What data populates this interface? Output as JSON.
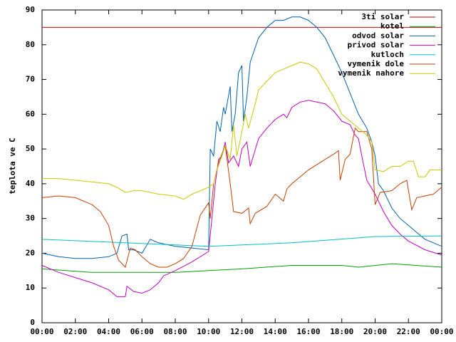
{
  "chart_data": {
    "type": "line",
    "y_label": "teplota ve C",
    "legend": "top-right",
    "grid": false,
    "xlim": [
      0,
      24
    ],
    "ylim": [
      0,
      90
    ],
    "xticks": [
      {
        "value": 0,
        "label": "00:00"
      },
      {
        "value": 2,
        "label": "02:00"
      },
      {
        "value": 4,
        "label": "04:00"
      },
      {
        "value": 6,
        "label": "06:00"
      },
      {
        "value": 8,
        "label": "08:00"
      },
      {
        "value": 10,
        "label": "10:00"
      },
      {
        "value": 12,
        "label": "12:00"
      },
      {
        "value": 14,
        "label": "14:00"
      },
      {
        "value": 16,
        "label": "16:00"
      },
      {
        "value": 18,
        "label": "18:00"
      },
      {
        "value": 20,
        "label": "20:00"
      },
      {
        "value": 22,
        "label": "22:00"
      },
      {
        "value": 24,
        "label": "00:00"
      }
    ],
    "yticks": [
      0,
      10,
      20,
      30,
      40,
      50,
      60,
      70,
      80,
      90
    ],
    "series": [
      {
        "name": "3ti solar",
        "color": "#cc0000",
        "x": [
          0,
          24
        ],
        "values": [
          85,
          85
        ]
      },
      {
        "name": "kotel",
        "color": "#00a000",
        "x": [
          0,
          3,
          8,
          10,
          12,
          15,
          18,
          19,
          21,
          24
        ],
        "values": [
          15.5,
          14.5,
          14.5,
          15,
          15.5,
          16.5,
          16.5,
          16,
          17,
          16
        ]
      },
      {
        "name": "odvod solar",
        "color": "#0060ad",
        "x": [
          0,
          1,
          2,
          3,
          4,
          4.5,
          4.8,
          5.1,
          5.2,
          5.5,
          6,
          6.5,
          7,
          8,
          9,
          10,
          10.1,
          10.3,
          10.5,
          10.7,
          10.9,
          11,
          11.3,
          11.4,
          11.6,
          11.8,
          12,
          12.1,
          12.3,
          12.5,
          13,
          13.5,
          14,
          14.5,
          15,
          15.5,
          16,
          16.5,
          17,
          17.5,
          18,
          18.5,
          19,
          19.5,
          19.8,
          20,
          20.2,
          20.5,
          21,
          21.5,
          22,
          22.5,
          23,
          23.5,
          24
        ],
        "values": [
          20,
          19,
          18.5,
          18.5,
          19,
          20,
          25,
          25.5,
          21,
          21,
          20,
          24,
          23,
          22,
          21.5,
          21,
          50,
          48,
          58,
          55,
          62,
          60,
          68,
          55,
          60,
          72,
          74,
          58,
          65,
          75,
          82,
          85,
          87,
          87,
          88,
          88,
          87,
          85,
          82,
          77,
          72,
          66,
          60,
          56,
          52,
          48,
          40,
          38,
          33,
          30,
          28,
          26,
          24,
          23,
          22
        ]
      },
      {
        "name": "privod solar",
        "color": "#c000c0",
        "x": [
          0,
          1,
          2,
          3,
          4,
          4.5,
          5,
          5.1,
          5.5,
          6,
          6.5,
          7,
          7.3,
          8,
          9,
          10,
          10.2,
          10.4,
          10.6,
          10.8,
          11,
          11.2,
          11.5,
          11.8,
          12,
          12.3,
          12.5,
          13,
          13.5,
          14,
          14.5,
          14.7,
          15,
          15.5,
          16,
          16.5,
          17,
          17.5,
          18,
          18.5,
          18.8,
          19,
          19.2,
          19.5,
          20,
          20.5,
          21,
          21.5,
          22,
          23,
          24
        ],
        "values": [
          16.5,
          14.5,
          13,
          11.5,
          9.5,
          7.5,
          7.5,
          10.5,
          9,
          8.5,
          9.5,
          11.5,
          13.5,
          15,
          17.5,
          20.5,
          30,
          40,
          47,
          48,
          52,
          46,
          48,
          45,
          50,
          52,
          45,
          53,
          56,
          58.5,
          60,
          59,
          62,
          63.5,
          64,
          63.5,
          63,
          61,
          58,
          57,
          54,
          53,
          48,
          41,
          37,
          32,
          28,
          25.5,
          23.5,
          21,
          19.5
        ]
      },
      {
        "name": "kutloch",
        "color": "#00c0c0",
        "x": [
          0,
          5,
          10,
          15,
          20,
          24
        ],
        "values": [
          24,
          23,
          22,
          23,
          24.8,
          25
        ]
      },
      {
        "name": "vymenik dole",
        "color": "#c04000",
        "x": [
          0,
          1,
          2,
          3,
          3.5,
          4,
          4.3,
          4.6,
          5,
          5.3,
          5.6,
          6,
          6.5,
          7,
          7.5,
          8,
          8.5,
          9,
          9.5,
          10,
          10.1,
          10.3,
          10.6,
          11,
          11.3,
          11.5,
          12,
          12.4,
          12.5,
          12.8,
          13.5,
          14,
          14.5,
          14.7,
          15,
          16,
          17,
          17.5,
          17.8,
          17.9,
          18.2,
          18.5,
          18.8,
          19,
          19.5,
          19.8,
          20,
          20.3,
          21,
          21.5,
          21.9,
          22.2,
          22.5,
          23,
          23.5,
          24
        ],
        "values": [
          36,
          36.5,
          36,
          34,
          32,
          28,
          22,
          18,
          16,
          21.5,
          21,
          19,
          17,
          16,
          16,
          17,
          18.5,
          22,
          31,
          34.5,
          30,
          40,
          46,
          51,
          40,
          32,
          31.5,
          33,
          28.5,
          31.5,
          33.5,
          37,
          35,
          38.5,
          40,
          44,
          47,
          48.5,
          49.5,
          41,
          47,
          48.5,
          56,
          55,
          55,
          50,
          34,
          37.5,
          38,
          40,
          41,
          32.5,
          36,
          36.5,
          37,
          39
        ]
      },
      {
        "name": "vymenik nahore",
        "color": "#c8c800",
        "x": [
          0,
          1,
          2,
          3,
          4,
          4.5,
          5,
          5.5,
          6,
          7,
          8,
          8.5,
          9,
          10,
          10.3,
          10.5,
          10.8,
          11,
          11.3,
          11.5,
          11.7,
          12,
          12.2,
          12.4,
          12.8,
          13,
          14,
          14.5,
          15,
          15.5,
          16,
          16.5,
          17,
          17.5,
          18,
          18.5,
          19,
          19.5,
          19.8,
          20,
          20.5,
          21,
          21.5,
          22,
          22.3,
          22.6,
          23,
          23.3,
          24
        ],
        "values": [
          41.5,
          41.5,
          41,
          40.5,
          40,
          39,
          37.5,
          38,
          38,
          37,
          36.5,
          35.5,
          37,
          39,
          40,
          44,
          48,
          51,
          47,
          57,
          48,
          55,
          60,
          56,
          63,
          67,
          72,
          73,
          74,
          75,
          74.5,
          73,
          69,
          65,
          60,
          58,
          56,
          54,
          52,
          44,
          43.5,
          45,
          45,
          46.5,
          46.5,
          42,
          42,
          44,
          44
        ]
      }
    ]
  }
}
